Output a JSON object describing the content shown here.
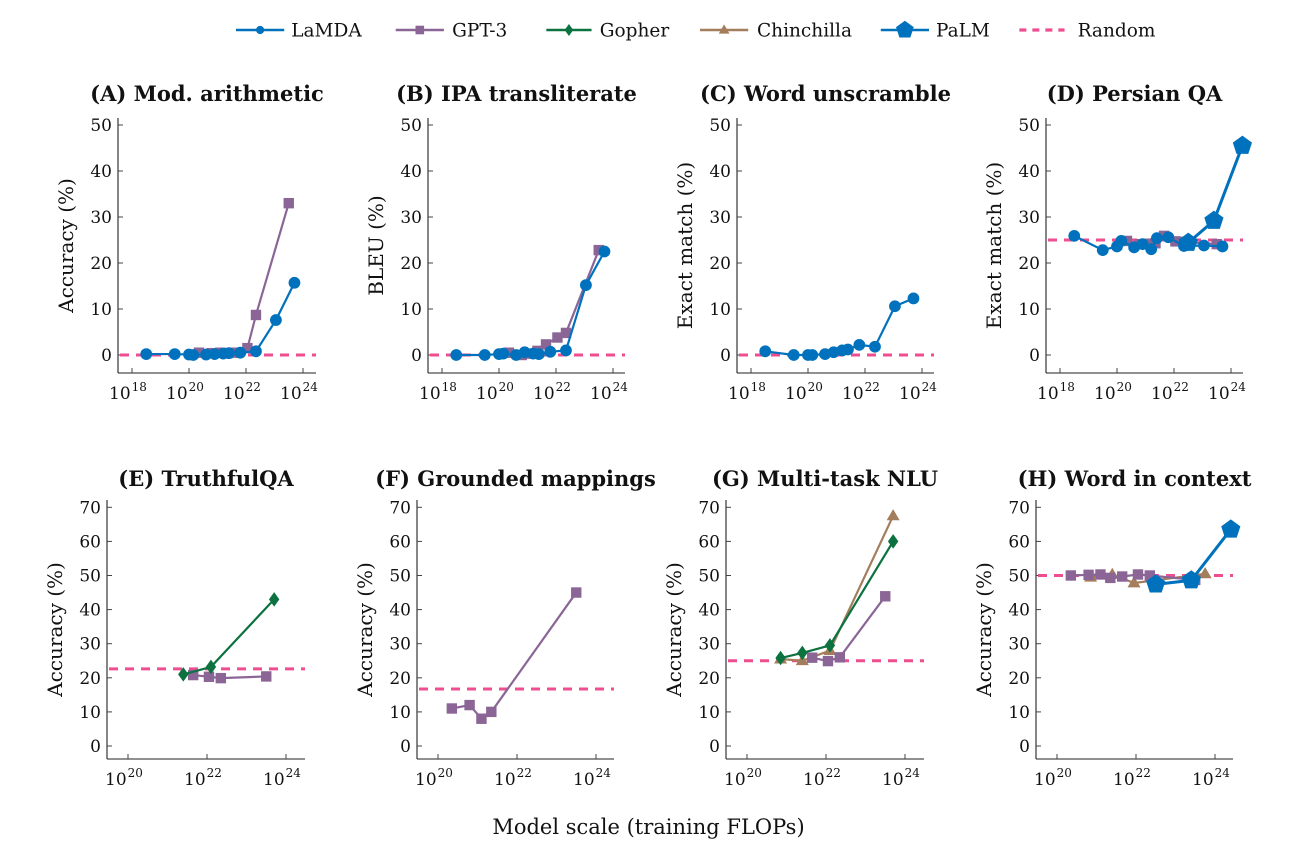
{
  "legend": [
    {
      "name": "LaMDA",
      "color": "#0072bd",
      "marker": "circle",
      "dashed": false
    },
    {
      "name": "GPT-3",
      "color": "#8a6596",
      "marker": "square",
      "dashed": false
    },
    {
      "name": "Gopher",
      "color": "#0b7240",
      "marker": "diamond",
      "dashed": false
    },
    {
      "name": "Chinchilla",
      "color": "#a47d5c",
      "marker": "triangle",
      "dashed": false
    },
    {
      "name": "PaLM",
      "color": "#0072bd",
      "marker": "pentagon",
      "dashed": false
    },
    {
      "name": "Random",
      "color": "#ee4d8f",
      "marker": "none",
      "dashed": true
    }
  ],
  "global_xlabel": "Model scale (training FLOPs)",
  "chart_data": [
    {
      "type": "line",
      "title": "(A) Mod. arithmetic",
      "xlabel": "",
      "ylabel": "Accuracy (%)",
      "xscale": "log10",
      "xlim_exp": [
        17.5,
        24.5
      ],
      "ylim": [
        -4,
        52
      ],
      "xticks_exp": [
        18,
        20,
        22,
        24
      ],
      "yticks": [
        0,
        10,
        20,
        30,
        40,
        50
      ],
      "random": 0,
      "series": [
        {
          "name": "LaMDA",
          "x_exp": [
            18.5,
            19.5,
            20.0,
            20.15,
            20.6,
            20.9,
            21.2,
            21.4,
            21.8,
            22.35,
            23.05,
            23.7
          ],
          "values": [
            0.2,
            0.2,
            0.1,
            0.0,
            0.1,
            0.2,
            0.3,
            0.4,
            0.5,
            0.8,
            7.6,
            15.7
          ]
        },
        {
          "name": "GPT-3",
          "x_exp": [
            20.35,
            20.8,
            21.1,
            21.35,
            21.65,
            22.05,
            22.35,
            23.5
          ],
          "values": [
            0.5,
            0.4,
            0.5,
            0.4,
            0.5,
            1.5,
            8.7,
            33.0
          ]
        }
      ]
    },
    {
      "type": "line",
      "title": "(B) IPA transliterate",
      "xlabel": "",
      "ylabel": "BLEU (%)",
      "xscale": "log10",
      "xlim_exp": [
        17.5,
        24.5
      ],
      "ylim": [
        -4,
        52
      ],
      "xticks_exp": [
        18,
        20,
        22,
        24
      ],
      "yticks": [
        0,
        10,
        20,
        30,
        40,
        50
      ],
      "random": 0,
      "series": [
        {
          "name": "LaMDA",
          "x_exp": [
            18.5,
            19.5,
            20.0,
            20.15,
            20.6,
            20.9,
            21.2,
            21.4,
            21.8,
            22.35,
            23.05,
            23.7
          ],
          "values": [
            0.0,
            0.0,
            0.2,
            0.3,
            0.0,
            0.6,
            0.3,
            0.2,
            0.7,
            1.0,
            15.2,
            22.5
          ]
        },
        {
          "name": "GPT-3",
          "x_exp": [
            20.35,
            20.8,
            21.1,
            21.35,
            21.65,
            22.05,
            22.35,
            23.5
          ],
          "values": [
            0.5,
            0.0,
            0.3,
            0.9,
            2.3,
            3.8,
            4.8,
            22.8
          ]
        }
      ]
    },
    {
      "type": "line",
      "title": "(C) Word unscramble",
      "xlabel": "",
      "ylabel": "Exact match (%)",
      "xscale": "log10",
      "xlim_exp": [
        17.5,
        24.5
      ],
      "ylim": [
        -4,
        52
      ],
      "xticks_exp": [
        18,
        20,
        22,
        24
      ],
      "yticks": [
        0,
        10,
        20,
        30,
        40,
        50
      ],
      "random": 0,
      "series": [
        {
          "name": "LaMDA",
          "x_exp": [
            18.5,
            19.5,
            20.0,
            20.15,
            20.6,
            20.9,
            21.2,
            21.4,
            21.8,
            22.35,
            23.05,
            23.7
          ],
          "values": [
            0.8,
            0.0,
            0.0,
            0.0,
            0.2,
            0.6,
            1.0,
            1.2,
            2.2,
            1.8,
            10.6,
            12.3
          ]
        }
      ]
    },
    {
      "type": "line",
      "title": "(D) Persian QA",
      "xlabel": "",
      "ylabel": "Exact match (%)",
      "xscale": "log10",
      "xlim_exp": [
        17.5,
        24.5
      ],
      "ylim": [
        -4,
        52
      ],
      "xticks_exp": [
        18,
        20,
        22,
        24
      ],
      "yticks": [
        0,
        10,
        20,
        30,
        40,
        50
      ],
      "random": 25,
      "series": [
        {
          "name": "LaMDA",
          "x_exp": [
            18.5,
            19.5,
            20.0,
            20.15,
            20.6,
            20.9,
            21.2,
            21.4,
            21.8,
            22.35,
            23.05,
            23.7
          ],
          "values": [
            25.9,
            22.8,
            23.6,
            24.8,
            23.4,
            24.1,
            23.0,
            25.4,
            25.6,
            23.7,
            23.8,
            23.6
          ]
        },
        {
          "name": "GPT-3",
          "x_exp": [
            20.35,
            20.8,
            21.1,
            21.35,
            21.65,
            22.05,
            22.35,
            23.5
          ],
          "values": [
            24.8,
            24.1,
            24.2,
            24.3,
            25.9,
            24.7,
            24.6,
            24.1
          ]
        },
        {
          "name": "PaLM",
          "x_exp": [
            22.5,
            23.4,
            24.4
          ],
          "values": [
            24.4,
            29.2,
            45.5
          ]
        }
      ]
    },
    {
      "type": "line",
      "title": "(E) TruthfulQA",
      "xlabel": "",
      "ylabel": "Accuracy (%)",
      "xscale": "log10",
      "xlim_exp": [
        19.5,
        24.5
      ],
      "ylim": [
        -4,
        72
      ],
      "xticks_exp": [
        20,
        22,
        24
      ],
      "yticks": [
        0,
        10,
        20,
        30,
        40,
        50,
        60,
        70
      ],
      "random": 22.6,
      "series": [
        {
          "name": "GPT-3",
          "x_exp": [
            21.65,
            22.05,
            22.35,
            23.5
          ],
          "values": [
            20.8,
            20.3,
            19.9,
            20.4
          ]
        },
        {
          "name": "Gopher",
          "x_exp": [
            21.4,
            22.1,
            23.7
          ],
          "values": [
            21.0,
            23.2,
            43.0
          ]
        }
      ]
    },
    {
      "type": "line",
      "title": "(F) Grounded mappings",
      "xlabel": "",
      "ylabel": "Accuracy (%)",
      "xscale": "log10",
      "xlim_exp": [
        19.5,
        24.5
      ],
      "ylim": [
        -4,
        72
      ],
      "xticks_exp": [
        20,
        22,
        24
      ],
      "yticks": [
        0,
        10,
        20,
        30,
        40,
        50,
        60,
        70
      ],
      "random": 16.7,
      "series": [
        {
          "name": "GPT-3",
          "x_exp": [
            20.35,
            20.8,
            21.1,
            21.35,
            23.5
          ],
          "values": [
            11.0,
            12.0,
            8.0,
            10.0,
            45.0
          ]
        }
      ]
    },
    {
      "type": "line",
      "title": "(G) Multi-task NLU",
      "xlabel": "",
      "ylabel": "Accuracy (%)",
      "xscale": "log10",
      "xlim_exp": [
        19.5,
        24.5
      ],
      "ylim": [
        -4,
        72
      ],
      "xticks_exp": [
        20,
        22,
        24
      ],
      "yticks": [
        0,
        10,
        20,
        30,
        40,
        50,
        60,
        70
      ],
      "random": 25,
      "series": [
        {
          "name": "GPT-3",
          "x_exp": [
            21.65,
            22.05,
            22.35,
            23.5
          ],
          "values": [
            25.9,
            24.9,
            26.0,
            43.9
          ]
        },
        {
          "name": "Gopher",
          "x_exp": [
            20.85,
            21.4,
            22.1,
            23.7
          ],
          "values": [
            25.8,
            27.3,
            29.5,
            60.0
          ]
        },
        {
          "name": "Chinchilla",
          "x_exp": [
            20.85,
            21.4,
            22.1,
            23.7
          ],
          "values": [
            25.5,
            25.0,
            28.0,
            67.5
          ]
        }
      ]
    },
    {
      "type": "line",
      "title": "(H) Word in context",
      "xlabel": "",
      "ylabel": "Accuracy (%)",
      "xscale": "log10",
      "xlim_exp": [
        19.5,
        24.5
      ],
      "ylim": [
        -4,
        72
      ],
      "xticks_exp": [
        20,
        22,
        24
      ],
      "yticks": [
        0,
        10,
        20,
        30,
        40,
        50,
        60,
        70
      ],
      "random": 50,
      "series": [
        {
          "name": "GPT-3",
          "x_exp": [
            20.35,
            20.8,
            21.1,
            21.35,
            21.65,
            22.05,
            22.35,
            23.5
          ],
          "values": [
            50.0,
            50.2,
            50.3,
            49.3,
            49.7,
            50.3,
            50.0,
            48.7
          ]
        },
        {
          "name": "Chinchilla",
          "x_exp": [
            20.85,
            21.4,
            21.95,
            23.75
          ],
          "values": [
            49.5,
            50.3,
            47.8,
            50.5
          ]
        },
        {
          "name": "PaLM",
          "x_exp": [
            22.5,
            23.4,
            24.4
          ],
          "values": [
            47.4,
            48.6,
            63.5
          ]
        }
      ]
    }
  ]
}
